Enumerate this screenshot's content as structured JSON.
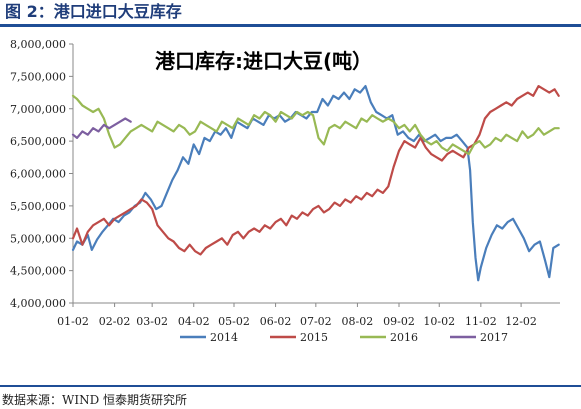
{
  "figure": {
    "title": "图 2：港口进口大豆库存",
    "source": "数据来源：WIND 恒泰期货研究所"
  },
  "colors": {
    "rule": "#1f4e96",
    "series_2014": "#4a7ebb",
    "series_2015": "#be4b48",
    "series_2016": "#98b954",
    "series_2017": "#7d5fa0"
  },
  "chart_data": {
    "type": "line",
    "title": "港口库存:进口大豆(吨）",
    "xlabel": "",
    "ylabel": "",
    "x_ticks": [
      "01-02",
      "02-02",
      "03-02",
      "04-02",
      "05-02",
      "06-02",
      "07-02",
      "08-02",
      "09-02",
      "10-02",
      "11-02",
      "12-02"
    ],
    "x_domain": [
      "01-02",
      "12-31"
    ],
    "ylim": [
      4000000,
      8000000
    ],
    "y_ticks": [
      "4,000,000",
      "4,500,000",
      "5,000,000",
      "5,500,000",
      "6,000,000",
      "6,500,000",
      "7,000,000",
      "7,500,000",
      "8,000,000"
    ],
    "grid": false,
    "legend_position": "bottom",
    "series": [
      {
        "name": "2014",
        "color": "#4a7ebb",
        "x": [
          "01-02",
          "01-05",
          "01-09",
          "01-13",
          "01-16",
          "01-20",
          "01-24",
          "01-28",
          "02-01",
          "02-05",
          "02-09",
          "02-13",
          "02-17",
          "02-21",
          "02-25",
          "03-01",
          "03-05",
          "03-09",
          "03-13",
          "03-17",
          "03-21",
          "03-25",
          "03-29",
          "04-02",
          "04-06",
          "04-10",
          "04-14",
          "04-18",
          "04-22",
          "04-26",
          "04-30",
          "05-04",
          "05-08",
          "05-12",
          "05-16",
          "05-20",
          "05-24",
          "05-28",
          "06-01",
          "06-05",
          "06-09",
          "06-13",
          "06-17",
          "06-21",
          "06-25",
          "06-29",
          "07-03",
          "07-07",
          "07-11",
          "07-15",
          "07-19",
          "07-23",
          "07-27",
          "07-31",
          "08-04",
          "08-08",
          "08-12",
          "08-16",
          "08-20",
          "08-24",
          "08-28",
          "09-01",
          "09-05",
          "09-09",
          "09-13",
          "09-17",
          "09-21",
          "09-25",
          "09-29",
          "10-03",
          "10-07",
          "10-11",
          "10-15",
          "10-19",
          "10-23",
          "10-25",
          "10-27",
          "10-29",
          "10-31",
          "11-02",
          "11-06",
          "11-10",
          "11-14",
          "11-18",
          "11-22",
          "11-26",
          "11-30",
          "12-04",
          "12-08",
          "12-12",
          "12-16",
          "12-20",
          "12-23",
          "12-26",
          "12-30"
        ],
        "values": [
          4820000,
          4950000,
          4900000,
          5050000,
          4820000,
          4980000,
          5100000,
          5200000,
          5300000,
          5250000,
          5350000,
          5400000,
          5500000,
          5550000,
          5700000,
          5600000,
          5450000,
          5500000,
          5700000,
          5900000,
          6050000,
          6250000,
          6150000,
          6450000,
          6300000,
          6550000,
          6500000,
          6650000,
          6600000,
          6700000,
          6550000,
          6800000,
          6750000,
          6700000,
          6850000,
          6800000,
          6750000,
          6900000,
          6850000,
          6900000,
          6800000,
          6850000,
          6950000,
          6900000,
          6850000,
          6950000,
          6950000,
          7150000,
          7050000,
          7200000,
          7150000,
          7250000,
          7150000,
          7300000,
          7250000,
          7350000,
          7100000,
          6950000,
          6900000,
          6850000,
          6900000,
          6600000,
          6650000,
          6550000,
          6500000,
          6600000,
          6500000,
          6550000,
          6600000,
          6500000,
          6550000,
          6550000,
          6600000,
          6500000,
          6400000,
          6050000,
          5250000,
          4700000,
          4350000,
          4550000,
          4850000,
          5050000,
          5200000,
          5150000,
          5250000,
          5300000,
          5150000,
          5000000,
          4800000,
          4900000,
          4950000,
          4650000,
          4400000,
          4850000,
          4900000
        ]
      },
      {
        "name": "2015",
        "color": "#be4b48",
        "x": [
          "01-02",
          "01-05",
          "01-09",
          "01-13",
          "01-17",
          "01-21",
          "01-25",
          "01-29",
          "02-02",
          "02-06",
          "02-10",
          "02-14",
          "02-18",
          "02-22",
          "02-26",
          "03-02",
          "03-06",
          "03-10",
          "03-14",
          "03-18",
          "03-22",
          "03-26",
          "03-30",
          "04-03",
          "04-07",
          "04-11",
          "04-15",
          "04-19",
          "04-23",
          "04-27",
          "05-01",
          "05-05",
          "05-09",
          "05-13",
          "05-17",
          "05-21",
          "05-25",
          "05-29",
          "06-02",
          "06-06",
          "06-10",
          "06-14",
          "06-18",
          "06-22",
          "06-26",
          "06-30",
          "07-04",
          "07-08",
          "07-12",
          "07-16",
          "07-20",
          "07-24",
          "07-28",
          "08-01",
          "08-05",
          "08-09",
          "08-13",
          "08-17",
          "08-21",
          "08-25",
          "08-29",
          "09-02",
          "09-06",
          "09-10",
          "09-14",
          "09-18",
          "09-22",
          "09-26",
          "09-30",
          "10-04",
          "10-08",
          "10-12",
          "10-16",
          "10-20",
          "10-24",
          "10-28",
          "11-01",
          "11-05",
          "11-09",
          "11-13",
          "11-17",
          "11-21",
          "11-25",
          "11-29",
          "12-03",
          "12-07",
          "12-11",
          "12-15",
          "12-19",
          "12-23",
          "12-27",
          "12-30"
        ],
        "values": [
          5000000,
          5150000,
          4900000,
          5100000,
          5200000,
          5250000,
          5300000,
          5200000,
          5300000,
          5350000,
          5400000,
          5450000,
          5500000,
          5600000,
          5550000,
          5450000,
          5200000,
          5100000,
          5000000,
          4950000,
          4850000,
          4800000,
          4900000,
          4800000,
          4750000,
          4850000,
          4900000,
          4950000,
          5000000,
          4900000,
          5050000,
          5100000,
          5000000,
          5100000,
          5150000,
          5100000,
          5200000,
          5150000,
          5250000,
          5300000,
          5200000,
          5350000,
          5300000,
          5400000,
          5350000,
          5450000,
          5500000,
          5400000,
          5450000,
          5550000,
          5500000,
          5600000,
          5550000,
          5650000,
          5600000,
          5700000,
          5650000,
          5750000,
          5700000,
          5800000,
          6100000,
          6350000,
          6500000,
          6450000,
          6400000,
          6550000,
          6400000,
          6300000,
          6250000,
          6200000,
          6300000,
          6350000,
          6300000,
          6250000,
          6400000,
          6450000,
          6600000,
          6850000,
          6950000,
          7000000,
          7050000,
          7100000,
          7050000,
          7150000,
          7200000,
          7250000,
          7200000,
          7350000,
          7300000,
          7250000,
          7300000,
          7200000
        ]
      },
      {
        "name": "2016",
        "color": "#98b954",
        "x": [
          "01-02",
          "01-05",
          "01-09",
          "01-13",
          "01-17",
          "01-21",
          "01-25",
          "01-29",
          "02-02",
          "02-06",
          "02-10",
          "02-14",
          "02-18",
          "02-22",
          "02-26",
          "03-02",
          "03-06",
          "03-10",
          "03-14",
          "03-18",
          "03-22",
          "03-26",
          "03-30",
          "04-03",
          "04-07",
          "04-11",
          "04-15",
          "04-19",
          "04-23",
          "04-27",
          "05-01",
          "05-05",
          "05-09",
          "05-13",
          "05-17",
          "05-21",
          "05-25",
          "05-29",
          "06-02",
          "06-06",
          "06-10",
          "06-14",
          "06-18",
          "06-22",
          "06-26",
          "06-30",
          "07-04",
          "07-08",
          "07-12",
          "07-16",
          "07-20",
          "07-24",
          "07-28",
          "08-01",
          "08-05",
          "08-09",
          "08-13",
          "08-17",
          "08-21",
          "08-25",
          "08-29",
          "09-02",
          "09-06",
          "09-10",
          "09-14",
          "09-18",
          "09-22",
          "09-26",
          "09-30",
          "10-04",
          "10-08",
          "10-12",
          "10-16",
          "10-20",
          "10-24",
          "10-28",
          "11-01",
          "11-05",
          "11-09",
          "11-13",
          "11-17",
          "11-21",
          "11-25",
          "11-29",
          "12-03",
          "12-07",
          "12-11",
          "12-15",
          "12-19",
          "12-23",
          "12-27",
          "12-30"
        ],
        "values": [
          7200000,
          7150000,
          7050000,
          7000000,
          6950000,
          7000000,
          6850000,
          6600000,
          6400000,
          6450000,
          6550000,
          6650000,
          6700000,
          6750000,
          6700000,
          6650000,
          6800000,
          6750000,
          6700000,
          6650000,
          6750000,
          6700000,
          6600000,
          6650000,
          6800000,
          6750000,
          6700000,
          6650000,
          6800000,
          6750000,
          6700000,
          6850000,
          6800000,
          6750000,
          6900000,
          6850000,
          6950000,
          6900000,
          6800000,
          6950000,
          6900000,
          6850000,
          6950000,
          6900000,
          6950000,
          6900000,
          6550000,
          6450000,
          6700000,
          6750000,
          6700000,
          6800000,
          6750000,
          6700000,
          6850000,
          6800000,
          6900000,
          6850000,
          6800000,
          6850000,
          6800000,
          6700000,
          6750000,
          6650000,
          6750000,
          6600000,
          6500000,
          6450000,
          6500000,
          6400000,
          6350000,
          6450000,
          6400000,
          6350000,
          6300000,
          6450000,
          6500000,
          6400000,
          6450000,
          6550000,
          6500000,
          6600000,
          6550000,
          6500000,
          6650000,
          6550000,
          6600000,
          6700000,
          6600000,
          6650000,
          6700000,
          6700000
        ]
      },
      {
        "name": "2017",
        "color": "#7d5fa0",
        "x": [
          "01-02",
          "01-05",
          "01-09",
          "01-13",
          "01-17",
          "01-21",
          "01-25",
          "01-29",
          "02-02",
          "02-06",
          "02-10",
          "02-14"
        ],
        "values": [
          6600000,
          6550000,
          6650000,
          6600000,
          6700000,
          6650000,
          6750000,
          6700000,
          6750000,
          6800000,
          6850000,
          6800000
        ]
      }
    ]
  }
}
